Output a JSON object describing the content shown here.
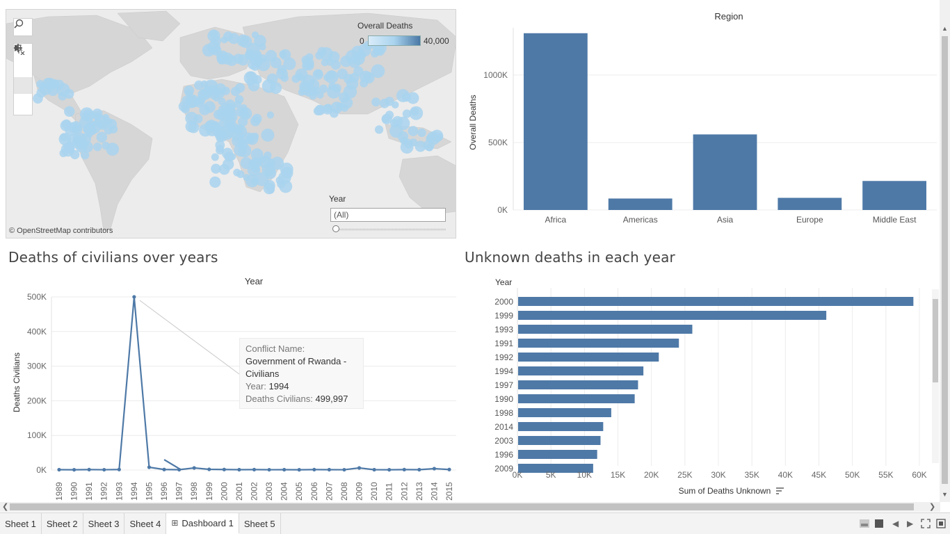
{
  "map": {
    "legend_title": "Overall Deaths",
    "legend_min": "0",
    "legend_max": "40,000",
    "year_filter_label": "Year",
    "year_filter_value": "(All)",
    "credit": "© OpenStreetMap contributors",
    "tools": {
      "search": "search-icon",
      "zoom_in": "plus-icon",
      "zoom_out": "minus-icon",
      "pin": "pin-icon",
      "play": "play-icon"
    },
    "colors": {
      "land": "#d5d5d5",
      "water": "#ececec",
      "mark": "#a9d3ee"
    }
  },
  "region_chart": {
    "header": "Region",
    "ylabel": "Overall Deaths",
    "color": "#4e79a7"
  },
  "civ_chart": {
    "section_title": "Deaths of civilians over years",
    "header": "Year",
    "ylabel": "Deaths Civilians",
    "color": "#4e79a7"
  },
  "unknown_chart": {
    "section_title": "Unknown deaths in each year",
    "ycol_header": "Year",
    "xlabel": "Sum of Deaths Unknown",
    "sort_icon": "sort-descending-icon",
    "color": "#4e79a7"
  },
  "tooltip": {
    "k1": "Conflict Name:",
    "v1a": "Government of Rwanda -",
    "v1b": "Civilians",
    "k2": "Year:",
    "v2": "1994",
    "k3": "Deaths Civilians:",
    "v3": "499,997"
  },
  "tabs": [
    {
      "label": "Sheet 1"
    },
    {
      "label": "Sheet 2"
    },
    {
      "label": "Sheet 3"
    },
    {
      "label": "Sheet 4"
    },
    {
      "label": "Dashboard 1",
      "active": true
    },
    {
      "label": "Sheet 5"
    }
  ],
  "chart_data": [
    {
      "type": "bar",
      "categories": [
        "Africa",
        "Americas",
        "Asia",
        "Europe",
        "Middle East"
      ],
      "values": [
        1310000,
        85000,
        560000,
        90000,
        215000
      ],
      "title": "Region",
      "xlabel": "",
      "ylabel": "Overall Deaths",
      "yticks": [
        "0K",
        "500K",
        "1000K"
      ],
      "ylim": [
        0,
        1350000
      ],
      "grid": true
    },
    {
      "type": "line",
      "title": "Year",
      "xlabel": "",
      "ylabel": "Deaths Civilians",
      "x": [
        "1989",
        "1990",
        "1991",
        "1992",
        "1993",
        "1994",
        "1995",
        "1996",
        "1997",
        "1998",
        "1999",
        "2000",
        "2001",
        "2002",
        "2003",
        "2004",
        "2005",
        "2006",
        "2007",
        "2008",
        "2009",
        "2010",
        "2011",
        "2012",
        "2013",
        "2014",
        "2015"
      ],
      "series": [
        {
          "values": [
            1000,
            800,
            1200,
            900,
            1500,
            499997,
            8000,
            1500,
            1000,
            6000,
            2000,
            1500,
            1000,
            1200,
            900,
            1000,
            800,
            1200,
            1000,
            900,
            6000,
            1000,
            800,
            1200,
            1000,
            4000,
            1500
          ]
        },
        {
          "values": [
            null,
            null,
            null,
            null,
            null,
            null,
            null,
            30000,
            4000,
            null,
            null,
            null,
            null,
            null,
            null,
            null,
            null,
            null,
            null,
            null,
            null,
            null,
            null,
            null,
            null,
            null,
            null
          ]
        }
      ],
      "yticks": [
        "0K",
        "100K",
        "200K",
        "300K",
        "400K",
        "500K"
      ],
      "ylim": [
        0,
        500000
      ],
      "grid": true
    },
    {
      "type": "bar",
      "orientation": "horizontal",
      "categories": [
        "2000",
        "1999",
        "1993",
        "1991",
        "1992",
        "1994",
        "1997",
        "1990",
        "1998",
        "2014",
        "2003",
        "1996",
        "2009"
      ],
      "values": [
        59000,
        46000,
        26000,
        24000,
        21000,
        18700,
        17900,
        17400,
        13900,
        12700,
        12300,
        11800,
        11200
      ],
      "title": "Unknown deaths in each year",
      "xlabel": "Sum of Deaths Unknown",
      "ylabel": "Year",
      "xticks": [
        "0K",
        "5K",
        "10K",
        "15K",
        "20K",
        "25K",
        "30K",
        "35K",
        "40K",
        "45K",
        "50K",
        "55K",
        "60K"
      ],
      "xlim": [
        0,
        62000
      ],
      "grid": true
    }
  ]
}
